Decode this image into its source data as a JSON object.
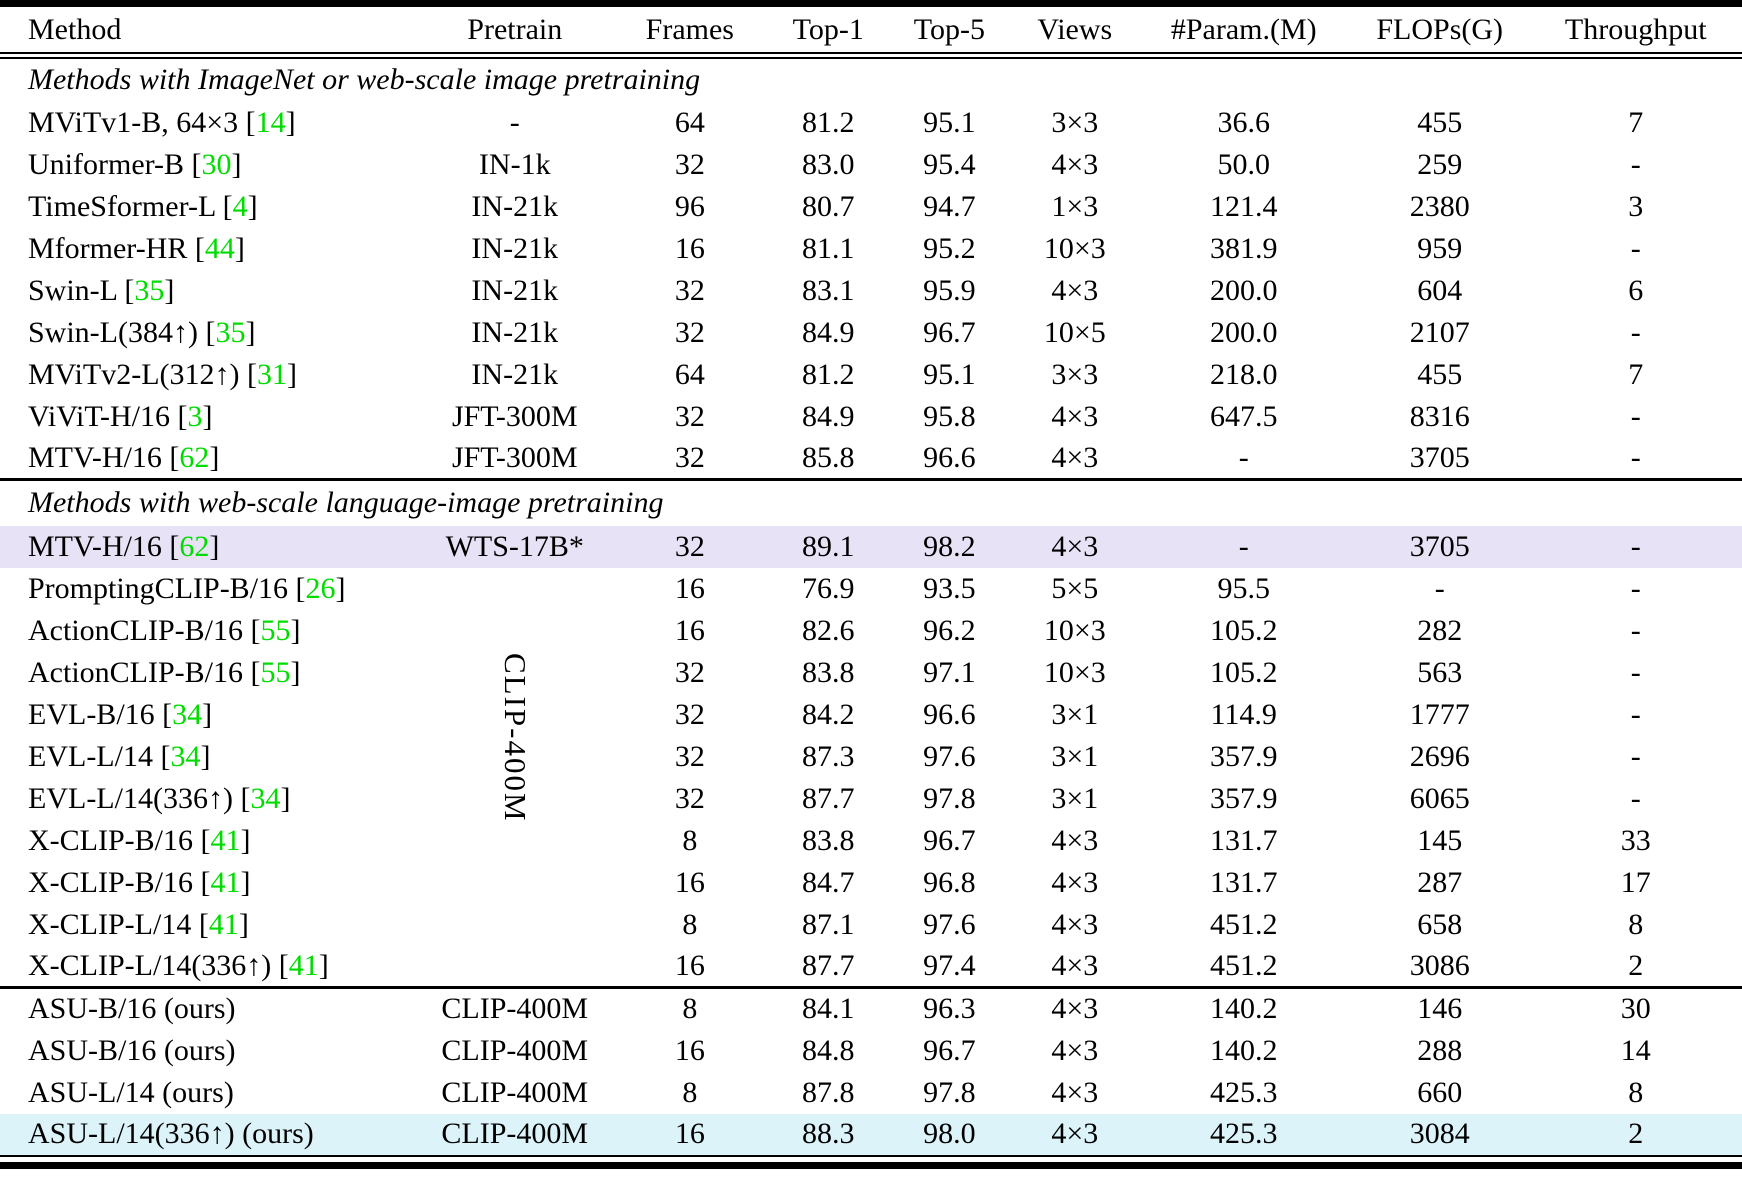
{
  "colors": {
    "citation": "#00DC00",
    "highlight_lavender": "#E7E2F6",
    "highlight_cyan": "#DCF3FA"
  },
  "table": {
    "columns": [
      "Method",
      "Pretrain",
      "Frames",
      "Top-1",
      "Top-5",
      "Views",
      "#Param.(M)",
      "FLOPs(G)",
      "Throughput"
    ],
    "pretrain_rotated_label": "CLIP-400M",
    "sections": [
      {
        "header": "Methods with ImageNet or web-scale image pretraining",
        "rows": [
          {
            "method": "MViTv1-B, 64×3",
            "cite": "14",
            "pretrain": "-",
            "frames": "64",
            "top1": "81.2",
            "top5": "95.1",
            "views": "3×3",
            "params": "36.6",
            "flops": "455",
            "throughput": "7",
            "highlight": null
          },
          {
            "method": "Uniformer-B",
            "cite": "30",
            "pretrain": "IN-1k",
            "frames": "32",
            "top1": "83.0",
            "top5": "95.4",
            "views": "4×3",
            "params": "50.0",
            "flops": "259",
            "throughput": "-",
            "highlight": null
          },
          {
            "method": "TimeSformer-L",
            "cite": "4",
            "pretrain": "IN-21k",
            "frames": "96",
            "top1": "80.7",
            "top5": "94.7",
            "views": "1×3",
            "params": "121.4",
            "flops": "2380",
            "throughput": "3",
            "highlight": null
          },
          {
            "method": "Mformer-HR",
            "cite": "44",
            "pretrain": "IN-21k",
            "frames": "16",
            "top1": "81.1",
            "top5": "95.2",
            "views": "10×3",
            "params": "381.9",
            "flops": "959",
            "throughput": "-",
            "highlight": null
          },
          {
            "method": "Swin-L",
            "cite": "35",
            "pretrain": "IN-21k",
            "frames": "32",
            "top1": "83.1",
            "top5": "95.9",
            "views": "4×3",
            "params": "200.0",
            "flops": "604",
            "throughput": "6",
            "highlight": null
          },
          {
            "method": "Swin-L(384↑)",
            "cite": "35",
            "pretrain": "IN-21k",
            "frames": "32",
            "top1": "84.9",
            "top5": "96.7",
            "views": "10×5",
            "params": "200.0",
            "flops": "2107",
            "throughput": "-",
            "highlight": null
          },
          {
            "method": "MViTv2-L(312↑)",
            "cite": "31",
            "pretrain": "IN-21k",
            "frames": "64",
            "top1": "81.2",
            "top5": "95.1",
            "views": "3×3",
            "params": "218.0",
            "flops": "455",
            "throughput": "7",
            "highlight": null
          },
          {
            "method": "ViViT-H/16",
            "cite": "3",
            "pretrain": "JFT-300M",
            "frames": "32",
            "top1": "84.9",
            "top5": "95.8",
            "views": "4×3",
            "params": "647.5",
            "flops": "8316",
            "throughput": "-",
            "highlight": null
          },
          {
            "method": "MTV-H/16",
            "cite": "62",
            "pretrain": "JFT-300M",
            "frames": "32",
            "top1": "85.8",
            "top5": "96.6",
            "views": "4×3",
            "params": "-",
            "flops": "3705",
            "throughput": "-",
            "highlight": null
          }
        ]
      },
      {
        "header": "Methods with web-scale language-image pretraining",
        "rows": [
          {
            "method": "MTV-H/16",
            "cite": "62",
            "pretrain": "WTS-17B*",
            "frames": "32",
            "top1": "89.1",
            "top5": "98.2",
            "views": "4×3",
            "params": "-",
            "flops": "3705",
            "throughput": "-",
            "highlight": "lavender"
          },
          {
            "method": "PromptingCLIP-B/16",
            "cite": "26",
            "pretrain": "",
            "frames": "16",
            "top1": "76.9",
            "top5": "93.5",
            "views": "5×5",
            "params": "95.5",
            "flops": "-",
            "throughput": "-",
            "highlight": null
          },
          {
            "method": "ActionCLIP-B/16",
            "cite": "55",
            "pretrain": "",
            "frames": "16",
            "top1": "82.6",
            "top5": "96.2",
            "views": "10×3",
            "params": "105.2",
            "flops": "282",
            "throughput": "-",
            "highlight": null
          },
          {
            "method": "ActionCLIP-B/16",
            "cite": "55",
            "pretrain": "",
            "frames": "32",
            "top1": "83.8",
            "top5": "97.1",
            "views": "10×3",
            "params": "105.2",
            "flops": "563",
            "throughput": "-",
            "highlight": null
          },
          {
            "method": "EVL-B/16",
            "cite": "34",
            "pretrain": "",
            "frames": "32",
            "top1": "84.2",
            "top5": "96.6",
            "views": "3×1",
            "params": "114.9",
            "flops": "1777",
            "throughput": "-",
            "highlight": null
          },
          {
            "method": "EVL-L/14",
            "cite": "34",
            "pretrain": "",
            "frames": "32",
            "top1": "87.3",
            "top5": "97.6",
            "views": "3×1",
            "params": "357.9",
            "flops": "2696",
            "throughput": "-",
            "highlight": null
          },
          {
            "method": "EVL-L/14(336↑)",
            "cite": "34",
            "pretrain": "",
            "frames": "32",
            "top1": "87.7",
            "top5": "97.8",
            "views": "3×1",
            "params": "357.9",
            "flops": "6065",
            "throughput": "-",
            "highlight": null
          },
          {
            "method": "X-CLIP-B/16",
            "cite": "41",
            "pretrain": "",
            "frames": "8",
            "top1": "83.8",
            "top5": "96.7",
            "views": "4×3",
            "params": "131.7",
            "flops": "145",
            "throughput": "33",
            "highlight": null
          },
          {
            "method": "X-CLIP-B/16",
            "cite": "41",
            "pretrain": "",
            "frames": "16",
            "top1": "84.7",
            "top5": "96.8",
            "views": "4×3",
            "params": "131.7",
            "flops": "287",
            "throughput": "17",
            "highlight": null
          },
          {
            "method": "X-CLIP-L/14",
            "cite": "41",
            "pretrain": "",
            "frames": "8",
            "top1": "87.1",
            "top5": "97.6",
            "views": "4×3",
            "params": "451.2",
            "flops": "658",
            "throughput": "8",
            "highlight": null
          },
          {
            "method": "X-CLIP-L/14(336↑)",
            "cite": "41",
            "pretrain": "",
            "frames": "16",
            "top1": "87.7",
            "top5": "97.4",
            "views": "4×3",
            "params": "451.2",
            "flops": "3086",
            "throughput": "2",
            "highlight": null
          }
        ]
      },
      {
        "header": null,
        "rows": [
          {
            "method": "ASU-B/16 (ours)",
            "cite": null,
            "pretrain": "CLIP-400M",
            "frames": "8",
            "top1": "84.1",
            "top5": "96.3",
            "views": "4×3",
            "params": "140.2",
            "flops": "146",
            "throughput": "30",
            "highlight": null
          },
          {
            "method": "ASU-B/16 (ours)",
            "cite": null,
            "pretrain": "CLIP-400M",
            "frames": "16",
            "top1": "84.8",
            "top5": "96.7",
            "views": "4×3",
            "params": "140.2",
            "flops": "288",
            "throughput": "14",
            "highlight": null
          },
          {
            "method": "ASU-L/14 (ours)",
            "cite": null,
            "pretrain": "CLIP-400M",
            "frames": "8",
            "top1": "87.8",
            "top5": "97.8",
            "views": "4×3",
            "params": "425.3",
            "flops": "660",
            "throughput": "8",
            "highlight": null
          },
          {
            "method": "ASU-L/14(336↑) (ours)",
            "cite": null,
            "pretrain": "CLIP-400M",
            "frames": "16",
            "top1": "88.3",
            "top5": "98.0",
            "views": "4×3",
            "params": "425.3",
            "flops": "3084",
            "throughput": "2",
            "highlight": "cyan"
          }
        ]
      }
    ]
  }
}
